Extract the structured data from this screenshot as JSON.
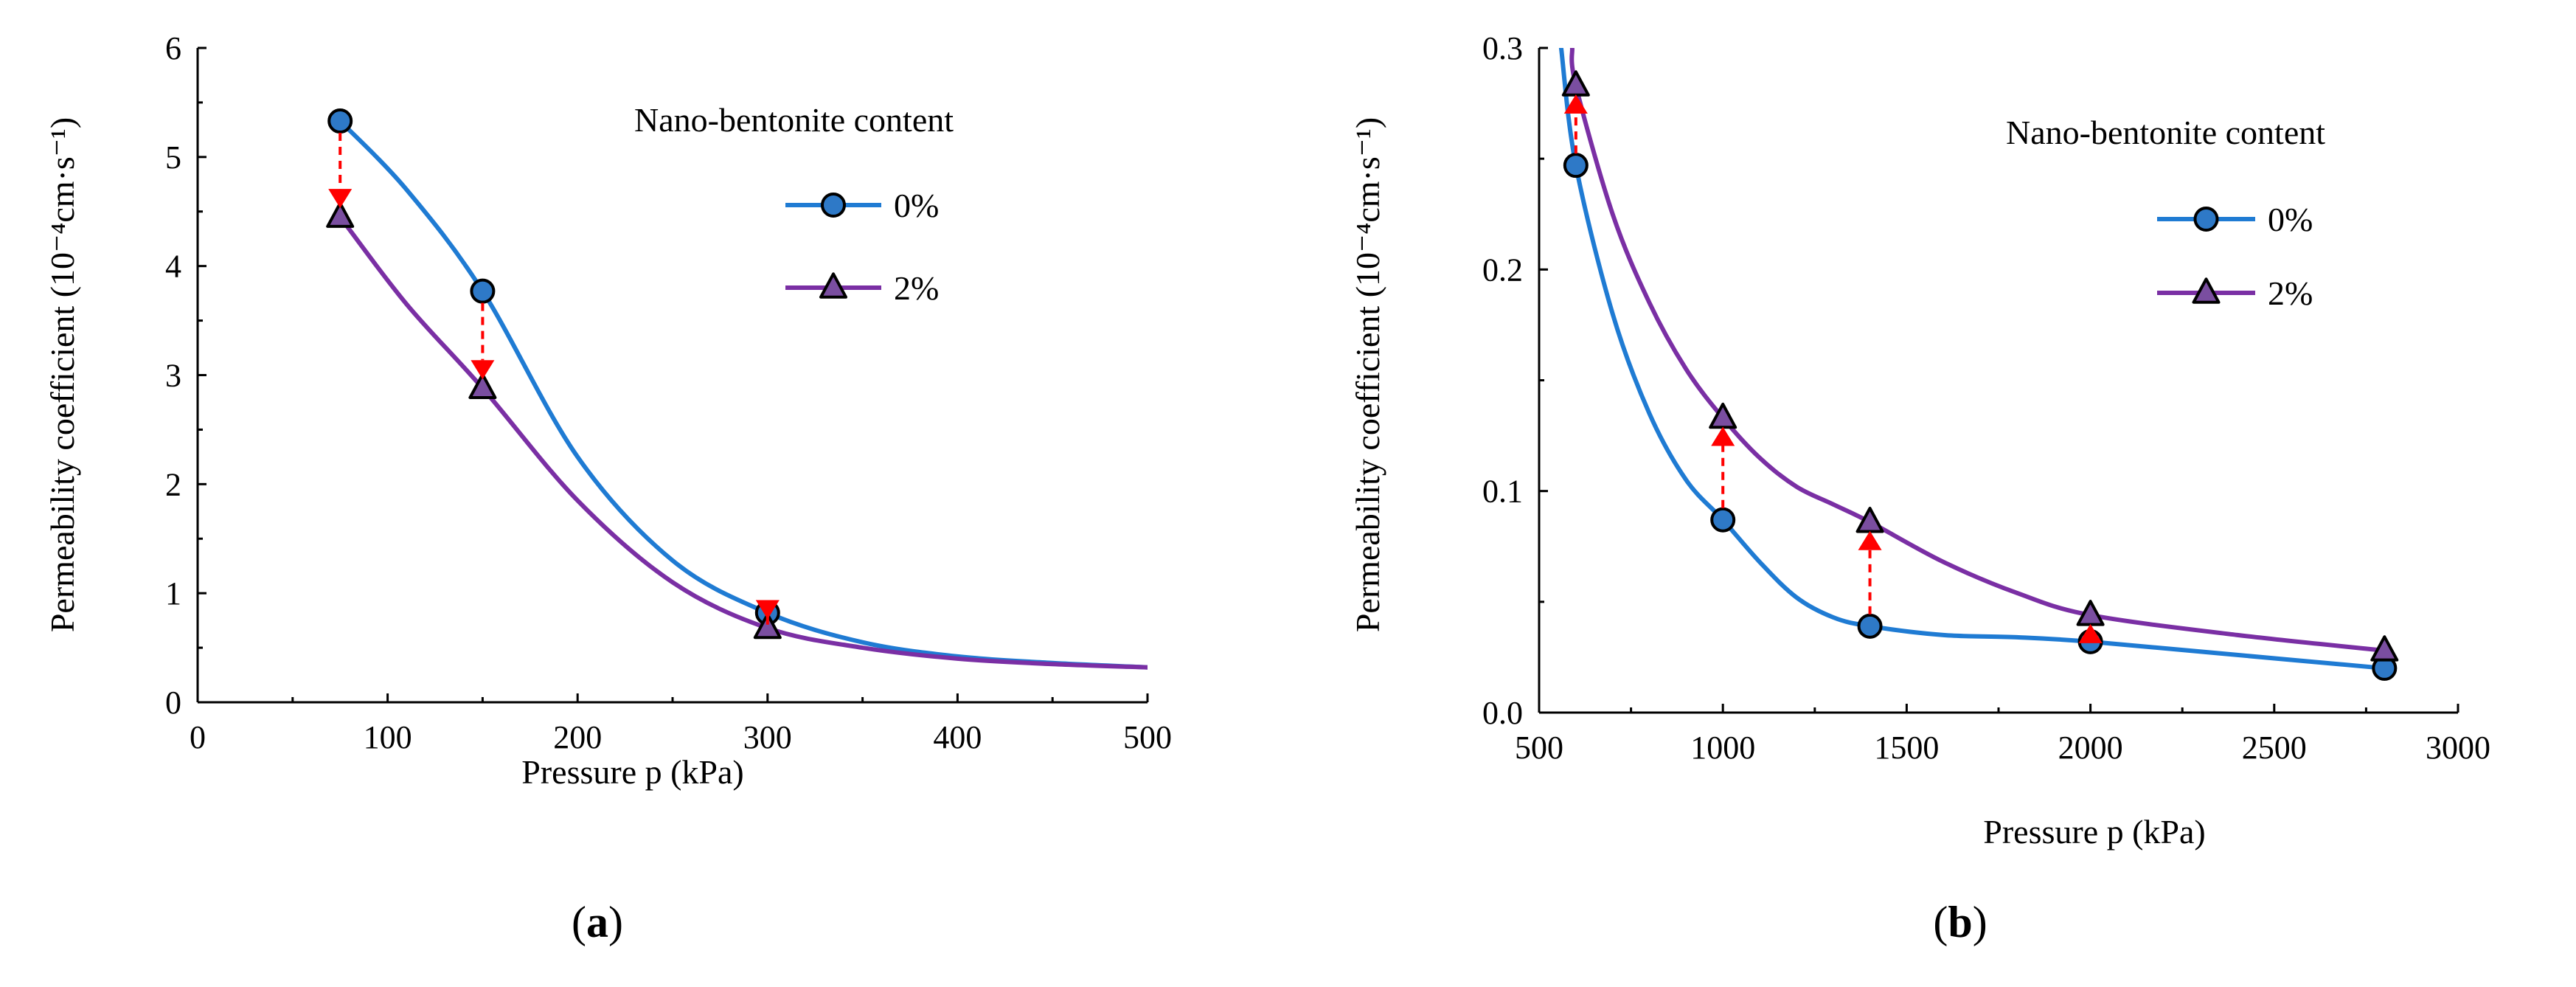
{
  "chart_data": [
    {
      "type": "line",
      "panel_label": "(a)",
      "xlabel": "Pressure  p (kPa)",
      "ylabel": "Permeability coefficient (10⁻⁴cm·s⁻¹)",
      "xlim": [
        0,
        500
      ],
      "ylim": [
        0,
        6
      ],
      "xticks": [
        0,
        100,
        200,
        300,
        400,
        500
      ],
      "yticks": [
        0,
        1,
        2,
        3,
        4,
        5,
        6
      ],
      "grid": false,
      "legend": {
        "title": "Nano-bentonite content",
        "position": "top-right"
      },
      "series": [
        {
          "name": "0%",
          "color": "#1f7bd3",
          "marker": "circle",
          "marker_color": "#2e79c7",
          "points": [
            [
              75,
              5.33
            ],
            [
              150,
              3.77
            ],
            [
              300,
              0.82
            ]
          ],
          "curve": [
            [
              75,
              5.33
            ],
            [
              110,
              4.7
            ],
            [
              150,
              3.77
            ],
            [
              200,
              2.25
            ],
            [
              250,
              1.3
            ],
            [
              300,
              0.82
            ],
            [
              350,
              0.55
            ],
            [
              400,
              0.42
            ],
            [
              450,
              0.36
            ],
            [
              500,
              0.32
            ]
          ]
        },
        {
          "name": "2%",
          "color": "#7a2fa4",
          "marker": "triangle",
          "marker_color": "#7a4ea0",
          "points": [
            [
              75,
              4.45
            ],
            [
              150,
              2.88
            ],
            [
              300,
              0.68
            ]
          ],
          "curve": [
            [
              75,
              4.45
            ],
            [
              110,
              3.65
            ],
            [
              150,
              2.88
            ],
            [
              200,
              1.85
            ],
            [
              250,
              1.1
            ],
            [
              300,
              0.68
            ],
            [
              350,
              0.5
            ],
            [
              400,
              0.4
            ],
            [
              450,
              0.35
            ],
            [
              500,
              0.32
            ]
          ]
        }
      ],
      "arrows": [
        {
          "x": 75,
          "from": 5.33,
          "to": 4.45,
          "direction": "down"
        },
        {
          "x": 150,
          "from": 3.77,
          "to": 2.88,
          "direction": "down"
        },
        {
          "x": 300,
          "from": 0.82,
          "to": 0.68,
          "direction": "down"
        }
      ]
    },
    {
      "type": "line",
      "panel_label": "(b)",
      "xlabel": "Pressure p (kPa)",
      "ylabel": "Permeability coefficient (10⁻⁴cm·s⁻¹)",
      "xlim": [
        500,
        3000
      ],
      "ylim": [
        0,
        0.3
      ],
      "xticks": [
        500,
        1000,
        1500,
        2000,
        2500,
        3000
      ],
      "yticks": [
        0.0,
        0.1,
        0.2,
        0.3
      ],
      "ytick_labels": [
        "0.0",
        "0.1",
        "0.2",
        "0.3"
      ],
      "grid": false,
      "legend": {
        "title": "Nano-bentonite content",
        "position": "top-right"
      },
      "series": [
        {
          "name": "0%",
          "color": "#1f7bd3",
          "marker": "circle",
          "marker_color": "#2e79c7",
          "points": [
            [
              600,
              0.247
            ],
            [
              1000,
              0.087
            ],
            [
              1400,
              0.039
            ],
            [
              2000,
              0.032
            ],
            [
              2800,
              0.02
            ]
          ],
          "curve": [
            [
              560,
              0.3
            ],
            [
              600,
              0.247
            ],
            [
              700,
              0.18
            ],
            [
              800,
              0.135
            ],
            [
              900,
              0.105
            ],
            [
              1000,
              0.087
            ],
            [
              1100,
              0.068
            ],
            [
              1200,
              0.052
            ],
            [
              1300,
              0.043
            ],
            [
              1400,
              0.039
            ],
            [
              1600,
              0.035
            ],
            [
              1800,
              0.034
            ],
            [
              2000,
              0.032
            ],
            [
              2400,
              0.026
            ],
            [
              2800,
              0.02
            ]
          ]
        },
        {
          "name": "2%",
          "color": "#7a2fa4",
          "marker": "triangle",
          "marker_color": "#7a4ea0",
          "points": [
            [
              600,
              0.283
            ],
            [
              1000,
              0.133
            ],
            [
              1400,
              0.086
            ],
            [
              2000,
              0.044
            ],
            [
              2800,
              0.028
            ]
          ],
          "curve": [
            [
              590,
              0.3
            ],
            [
              600,
              0.283
            ],
            [
              700,
              0.225
            ],
            [
              800,
              0.185
            ],
            [
              900,
              0.155
            ],
            [
              1000,
              0.133
            ],
            [
              1100,
              0.115
            ],
            [
              1200,
              0.102
            ],
            [
              1300,
              0.094
            ],
            [
              1400,
              0.086
            ],
            [
              1600,
              0.068
            ],
            [
              1800,
              0.054
            ],
            [
              2000,
              0.044
            ],
            [
              2400,
              0.035
            ],
            [
              2800,
              0.028
            ]
          ]
        }
      ],
      "arrows": [
        {
          "x": 600,
          "from": 0.247,
          "to": 0.283,
          "direction": "up"
        },
        {
          "x": 1000,
          "from": 0.087,
          "to": 0.133,
          "direction": "up"
        },
        {
          "x": 1400,
          "from": 0.039,
          "to": 0.086,
          "direction": "up"
        },
        {
          "x": 2000,
          "from": 0.032,
          "to": 0.044,
          "direction": "up"
        }
      ]
    }
  ],
  "arrow_color": "#ff0000"
}
